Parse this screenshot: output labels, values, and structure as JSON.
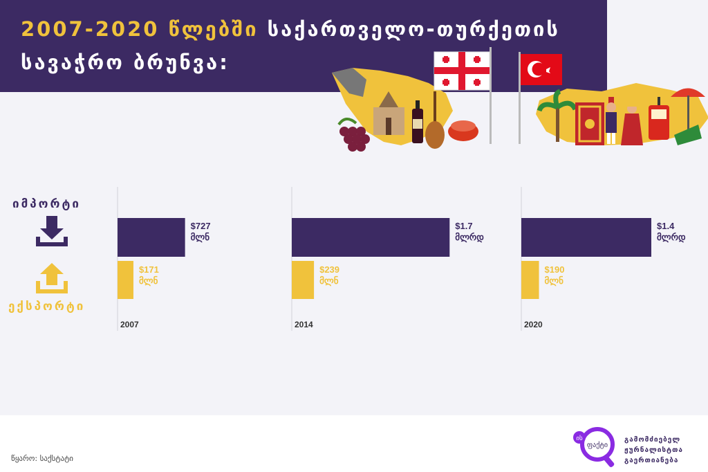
{
  "header": {
    "title_years": "2007-2020 წლებში",
    "title_rest_1": "საქართველო-თურქეთის",
    "title_line_2": "სავაჭრო ბრუნვა:"
  },
  "legend": {
    "import_label": "იმპორტი",
    "export_label": "ექსპორტი"
  },
  "chart_data": {
    "type": "bar",
    "categories": [
      "2007",
      "2014",
      "2020"
    ],
    "series": [
      {
        "name": "იმპორტი",
        "values": [
          727,
          1700,
          1400
        ],
        "labels": [
          "$727 მლნ",
          "$1.7 მლრდ",
          "$1.4 მლრდ"
        ]
      },
      {
        "name": "ექსპორტი",
        "values": [
          171,
          239,
          190
        ],
        "labels": [
          "$171 მლნ",
          "$239 მლნ",
          "$190 მლნ"
        ]
      }
    ],
    "colors": {
      "import": "#3c2a63",
      "export": "#f0c23c"
    }
  },
  "footer": {
    "source": "წყარო: საქსტატი",
    "org_line_1": "გამომძიებელ",
    "org_line_2": "ჟურნალისტთა",
    "org_line_3": "გაერთიანება",
    "logo_text": "ფაქტი",
    "logo_badge": "ის"
  }
}
